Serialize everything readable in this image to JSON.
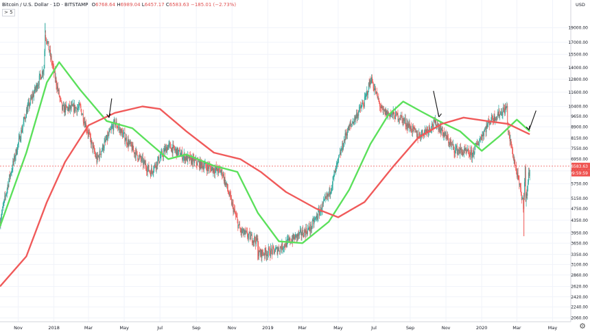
{
  "header": {
    "symbol": "Bitcoin / U.S. Dollar",
    "interval": "1D",
    "exchange": "BITSTAMP",
    "open_label": "O",
    "open": "6768.64",
    "high_label": "H",
    "high": "6989.04",
    "low_label": "L",
    "low": "6457.17",
    "close_label": "C",
    "close": "6583.63",
    "change": "−185.01 (−2.73%)",
    "collapse_control": "> 5"
  },
  "price_axis": {
    "currency_label": "USD",
    "ticks": [
      "19000.00",
      "17000.00",
      "15500.00",
      "14000.00",
      "12800.00",
      "11600.00",
      "10400.00",
      "9650.00",
      "8900.00",
      "8150.00",
      "7550.00",
      "6950.00",
      "6350.00",
      "5750.00",
      "5150.00",
      "4750.00",
      "4350.00",
      "3950.00",
      "3650.00",
      "3350.00",
      "3100.00",
      "2860.00",
      "2620.00",
      "2420.00",
      "2240.00",
      "2060.00"
    ],
    "last_price_label": "6583.63",
    "countdown_label": "09:59:59"
  },
  "time_axis": {
    "ticks": [
      "Nov",
      "2018",
      "Mar",
      "May",
      "Jul",
      "Sep",
      "Nov",
      "2019",
      "Mar",
      "May",
      "Jul",
      "Sep",
      "Nov",
      "2020",
      "Mar",
      "May"
    ]
  },
  "colors": {
    "up": "#26a69a",
    "down": "#ef5350",
    "ma_fast": "#5be05b",
    "ma_slow": "#f05a5a",
    "last_price": "#ef5350",
    "arrow": "#111111"
  },
  "settings_icon": "gear-icon",
  "chart_data": {
    "type": "candlestick",
    "scale": "log",
    "x_range": [
      "2017-10-01",
      "2020-06-01"
    ],
    "y_range": [
      2000,
      23500
    ],
    "closes_monthly": [
      {
        "date": "2017-10",
        "close": 5800
      },
      {
        "date": "2017-11",
        "close": 10000
      },
      {
        "date": "2017-12",
        "close": 14000
      },
      {
        "date": "2018-01",
        "close": 10200
      },
      {
        "date": "2018-02",
        "close": 10300
      },
      {
        "date": "2018-03",
        "close": 6900
      },
      {
        "date": "2018-04",
        "close": 9200
      },
      {
        "date": "2018-05",
        "close": 7500
      },
      {
        "date": "2018-06",
        "close": 6300
      },
      {
        "date": "2018-07",
        "close": 7700
      },
      {
        "date": "2018-08",
        "close": 7000
      },
      {
        "date": "2018-09",
        "close": 6600
      },
      {
        "date": "2018-10",
        "close": 6300
      },
      {
        "date": "2018-11",
        "close": 4000
      },
      {
        "date": "2018-12",
        "close": 3700
      },
      {
        "date": "2019-01",
        "close": 3450
      },
      {
        "date": "2019-02",
        "close": 3800
      },
      {
        "date": "2019-03",
        "close": 4100
      },
      {
        "date": "2019-04",
        "close": 5300
      },
      {
        "date": "2019-05",
        "close": 8500
      },
      {
        "date": "2019-06",
        "close": 10800
      },
      {
        "date": "2019-07",
        "close": 10000
      },
      {
        "date": "2019-08",
        "close": 9600
      },
      {
        "date": "2019-09",
        "close": 8300
      },
      {
        "date": "2019-10",
        "close": 9200
      },
      {
        "date": "2019-11",
        "close": 7500
      },
      {
        "date": "2019-12",
        "close": 7200
      },
      {
        "date": "2020-01",
        "close": 9350
      },
      {
        "date": "2020-02",
        "close": 8600
      },
      {
        "date": "2020-03",
        "close": 6450
      },
      {
        "date": "2020-03-23",
        "close": 6583.63
      }
    ],
    "peak": {
      "date": "2017-12-17",
      "high": 19700
    },
    "trough": {
      "date": "2018-12-15",
      "low": 3200
    },
    "covid_low": {
      "date": "2020-03-13",
      "low": 3850
    },
    "series": [
      {
        "kind": "moving-average",
        "color": "#5be05b",
        "values": [
          {
            "date": "2017-10-01",
            "value": 4150
          },
          {
            "date": "2017-11-15",
            "value": 7300
          },
          {
            "date": "2017-12-20",
            "value": 12500
          },
          {
            "date": "2018-01-10",
            "value": 14600
          },
          {
            "date": "2018-02-15",
            "value": 11800
          },
          {
            "date": "2018-04-01",
            "value": 9300
          },
          {
            "date": "2018-05-15",
            "value": 8800
          },
          {
            "date": "2018-06-15",
            "value": 7800
          },
          {
            "date": "2018-07-15",
            "value": 6950
          },
          {
            "date": "2018-08-15",
            "value": 7200
          },
          {
            "date": "2018-10-01",
            "value": 6600
          },
          {
            "date": "2018-11-10",
            "value": 6300
          },
          {
            "date": "2018-12-15",
            "value": 4600
          },
          {
            "date": "2019-01-20",
            "value": 3700
          },
          {
            "date": "2019-03-01",
            "value": 3650
          },
          {
            "date": "2019-04-15",
            "value": 4300
          },
          {
            "date": "2019-05-20",
            "value": 5500
          },
          {
            "date": "2019-06-25",
            "value": 7800
          },
          {
            "date": "2019-07-25",
            "value": 9700
          },
          {
            "date": "2019-08-20",
            "value": 10800
          },
          {
            "date": "2019-09-20",
            "value": 10000
          },
          {
            "date": "2019-10-25",
            "value": 9200
          },
          {
            "date": "2019-11-25",
            "value": 8600
          },
          {
            "date": "2020-01-01",
            "value": 7400
          },
          {
            "date": "2020-02-01",
            "value": 8300
          },
          {
            "date": "2020-03-01",
            "value": 9400
          },
          {
            "date": "2020-03-23",
            "value": 8600
          }
        ]
      },
      {
        "kind": "moving-average",
        "color": "#f05a5a",
        "values": [
          {
            "date": "2017-10-01",
            "value": 2620
          },
          {
            "date": "2017-11-15",
            "value": 3300
          },
          {
            "date": "2017-12-20",
            "value": 5000
          },
          {
            "date": "2018-01-20",
            "value": 6800
          },
          {
            "date": "2018-03-01",
            "value": 9000
          },
          {
            "date": "2018-04-15",
            "value": 9900
          },
          {
            "date": "2018-06-01",
            "value": 10400
          },
          {
            "date": "2018-07-01",
            "value": 10200
          },
          {
            "date": "2018-08-15",
            "value": 8600
          },
          {
            "date": "2018-10-01",
            "value": 7300
          },
          {
            "date": "2018-11-15",
            "value": 6950
          },
          {
            "date": "2018-12-20",
            "value": 6300
          },
          {
            "date": "2019-02-01",
            "value": 5400
          },
          {
            "date": "2019-03-25",
            "value": 4750
          },
          {
            "date": "2019-05-01",
            "value": 4450
          },
          {
            "date": "2019-06-15",
            "value": 5000
          },
          {
            "date": "2019-08-01",
            "value": 6500
          },
          {
            "date": "2019-09-15",
            "value": 8200
          },
          {
            "date": "2019-10-25",
            "value": 9100
          },
          {
            "date": "2019-12-01",
            "value": 9550
          },
          {
            "date": "2020-01-10",
            "value": 9300
          },
          {
            "date": "2020-02-15",
            "value": 9100
          },
          {
            "date": "2020-03-23",
            "value": 8400
          }
        ]
      }
    ],
    "annotations": [
      {
        "type": "arrow",
        "date": "2018-04-05",
        "price": 9550
      },
      {
        "type": "arrow",
        "date": "2019-10-20",
        "price": 9600
      },
      {
        "type": "arrow",
        "date": "2020-03-22",
        "price": 8700
      }
    ]
  }
}
